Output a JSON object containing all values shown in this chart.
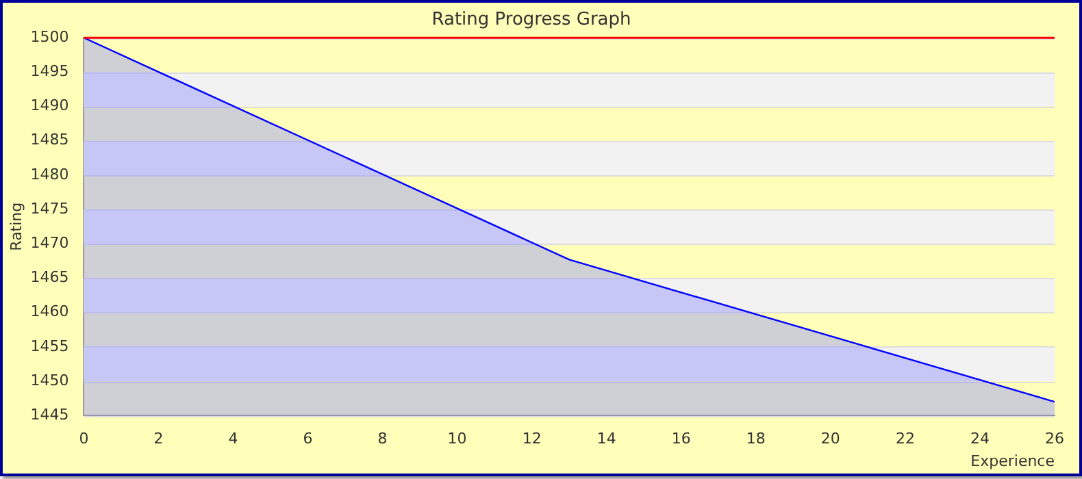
{
  "chart_data": {
    "type": "area",
    "title": "Rating Progress Graph",
    "xlabel": "Experience",
    "ylabel": "Rating",
    "x": [
      0,
      13,
      26
    ],
    "series": [
      {
        "color": "#0000ff",
        "values": [
          1500,
          1467.7,
          1447
        ]
      }
    ],
    "xlim": [
      0,
      26
    ],
    "xticks": [
      0,
      2,
      4,
      6,
      8,
      10,
      12,
      14,
      16,
      18,
      20,
      22,
      24,
      26
    ],
    "ylim": [
      1445,
      1500
    ],
    "yticks": [
      1445,
      1450,
      1455,
      1460,
      1465,
      1470,
      1475,
      1480,
      1485,
      1490,
      1495,
      1500
    ],
    "ref_lines": [
      {
        "axis": "y",
        "value": 1500,
        "color": "#ff0000"
      }
    ],
    "grid": true,
    "legend": false,
    "marker": "none"
  }
}
